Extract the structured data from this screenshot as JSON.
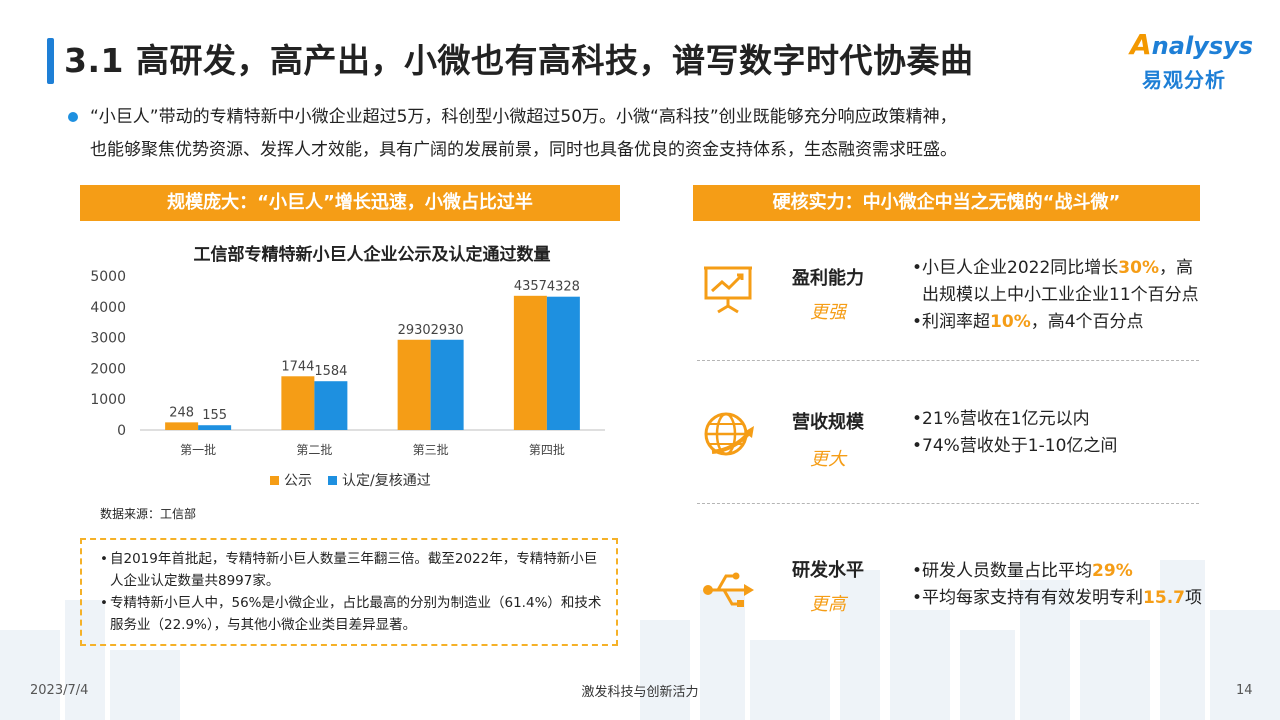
{
  "header": {
    "title": "3.1 高研发，高产出，小微也有高科技，谱写数字时代协奏曲",
    "logo_en": "nalysys",
    "logo_en_initial": "A",
    "logo_cn": "易观分析"
  },
  "intro": {
    "line1": "“小巨人”带动的专精特新中小微企业超过5万，科创型小微超过50万。小微“高科技”创业既能够充分响应政策精神，",
    "line2": "也能够聚焦优势资源、发挥人才效能，具有广阔的发展前景，同时也具备优良的资金支持体系，生态融资需求旺盛。"
  },
  "left_header": "规模庞大：“小巨人”增长迅速，小微占比过半",
  "right_header": "硬核实力：中小微企中当之无愧的“战斗微”",
  "chart_data": {
    "type": "bar",
    "title": "工信部专精特新小巨人企业公示及认定通过数量",
    "categories": [
      "第一批",
      "第二批",
      "第三批",
      "第四批"
    ],
    "series": [
      {
        "name": "公示",
        "values": [
          248,
          1744,
          2930,
          4357
        ],
        "color": "#f59d16"
      },
      {
        "name": "认定/复核通过",
        "values": [
          155,
          1584,
          2930,
          4328
        ],
        "color": "#1e90e0"
      }
    ],
    "ylim": [
      0,
      5000
    ],
    "yticks": [
      0,
      1000,
      2000,
      3000,
      4000,
      5000
    ],
    "xlabel": "",
    "ylabel": "",
    "grid": false,
    "legend": "bottom"
  },
  "source": "数据来源：工信部",
  "notes": [
    "自2019年首批起，专精特新小巨人数量三年翻三倍。截至2022年，专精特新小巨人企业认定数量共8997家。",
    "专精特新小巨人中，56%是小微企业，占比最高的分别为制造业（61.4%）和技术服务业（22.9%），与其他小微企业类目差异显著。"
  ],
  "metrics": [
    {
      "label": "盈利能力",
      "sub": "更强",
      "icon": "presentation-chart-icon",
      "bullets": [
        {
          "pre": "•小巨人企业2022同比增长",
          "hl": "30%",
          "post": "，高"
        },
        {
          "pre": "  出规模以上中小工业企业11个百分点",
          "hl": "",
          "post": ""
        },
        {
          "pre": "•利润率超",
          "hl": "10%",
          "post": "，高4个百分点"
        }
      ]
    },
    {
      "label": "营收规模",
      "sub": "更大",
      "icon": "globe-growth-icon",
      "bullets": [
        {
          "pre": "•21%营收在1亿元以内",
          "hl": "",
          "post": ""
        },
        {
          "pre": "•74%营收处于1-10亿之间",
          "hl": "",
          "post": ""
        }
      ]
    },
    {
      "label": "研发水平",
      "sub": "更高",
      "icon": "usb-tech-icon",
      "bullets": [
        {
          "pre": "•研发人员数量占比平均",
          "hl": "29%",
          "post": ""
        },
        {
          "pre": "•平均每家支持有有效发明专利",
          "hl": "15.7",
          "post": "项"
        }
      ]
    }
  ],
  "footer": {
    "date": "2023/7/4",
    "center": "激发科技与创新活力",
    "page": "14"
  }
}
